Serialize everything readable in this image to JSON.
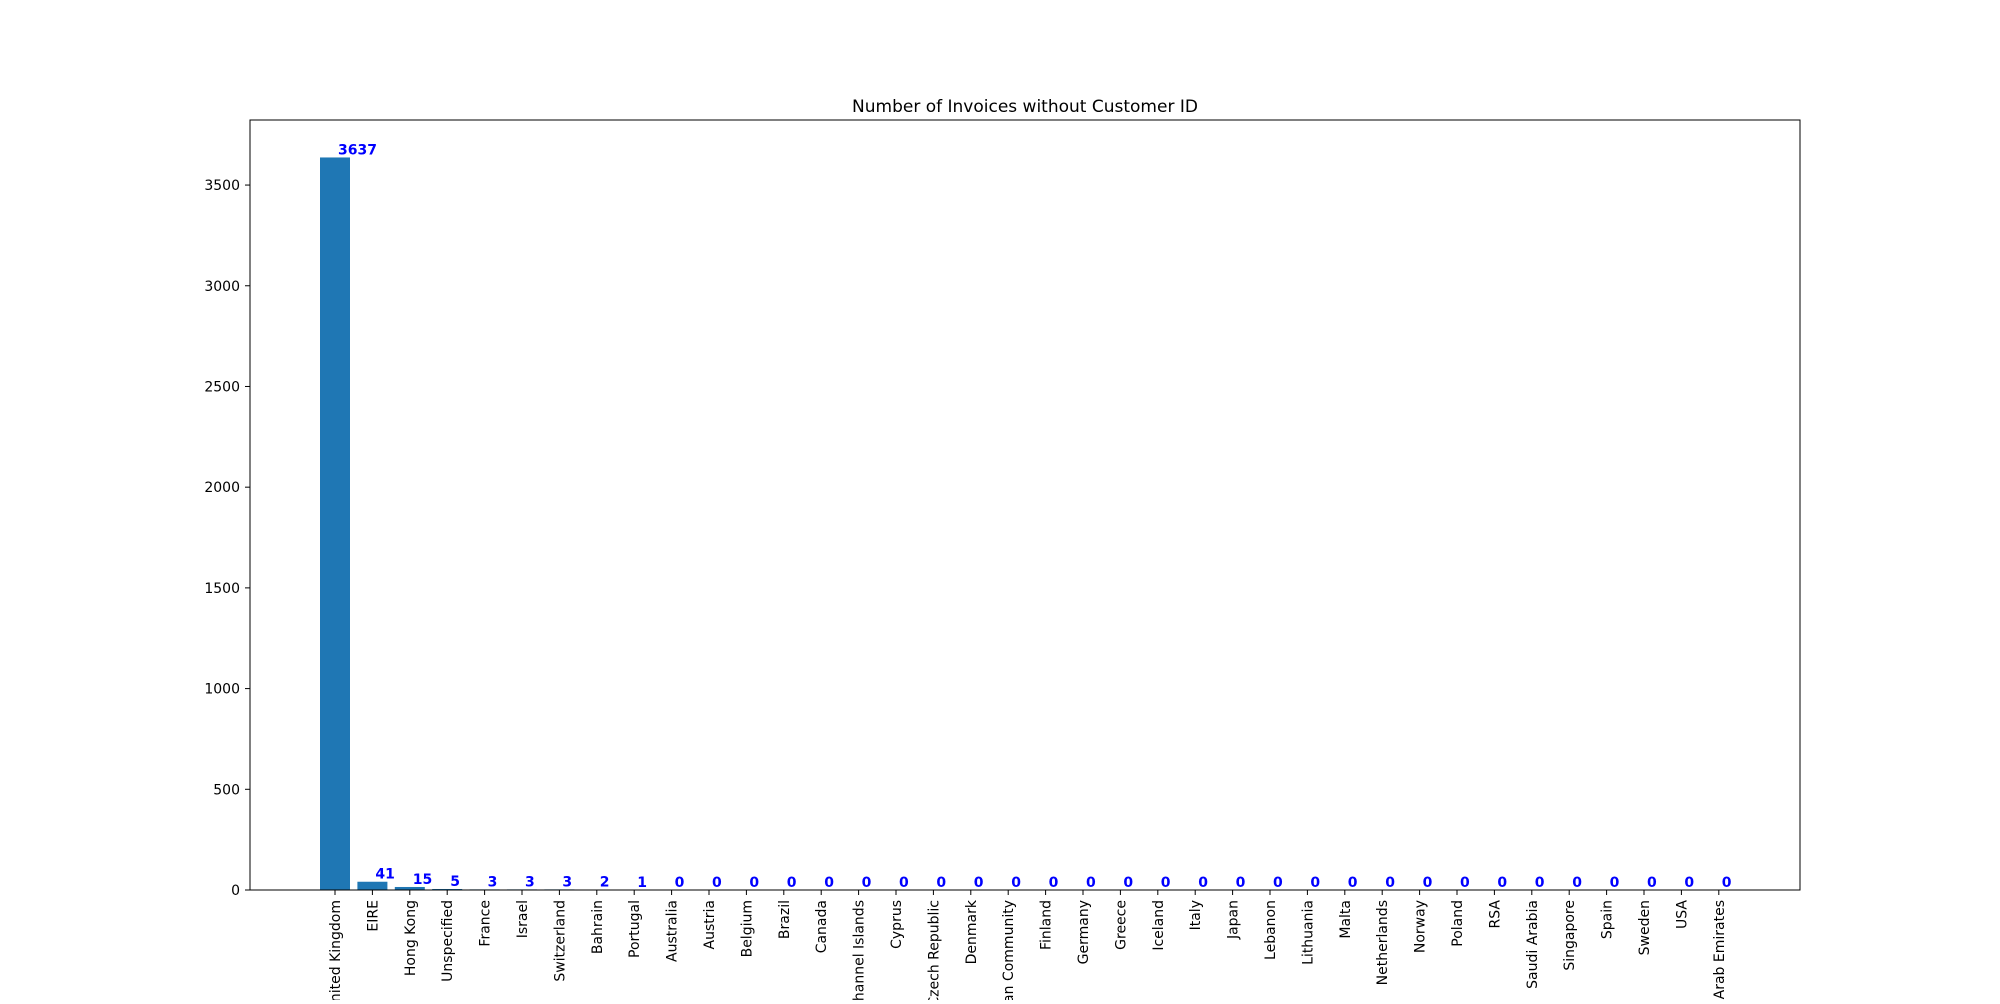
{
  "chart_data": {
    "type": "bar",
    "title": "Number of Invoices without Customer ID",
    "xlabel": "",
    "ylabel": "",
    "categories": [
      "United Kingdom",
      "EIRE",
      "Hong Kong",
      "Unspecified",
      "France",
      "Israel",
      "Switzerland",
      "Bahrain",
      "Portugal",
      "Australia",
      "Austria",
      "Belgium",
      "Brazil",
      "Canada",
      "Channel Islands",
      "Cyprus",
      "Czech Republic",
      "Denmark",
      "European Community",
      "Finland",
      "Germany",
      "Greece",
      "Iceland",
      "Italy",
      "Japan",
      "Lebanon",
      "Lithuania",
      "Malta",
      "Netherlands",
      "Norway",
      "Poland",
      "RSA",
      "Saudi Arabia",
      "Singapore",
      "Spain",
      "Sweden",
      "USA",
      "United Arab Emirates"
    ],
    "values": [
      3637,
      41,
      15,
      5,
      3,
      3,
      3,
      2,
      1,
      0,
      0,
      0,
      0,
      0,
      0,
      0,
      0,
      0,
      0,
      0,
      0,
      0,
      0,
      0,
      0,
      0,
      0,
      0,
      0,
      0,
      0,
      0,
      0,
      0,
      0,
      0,
      0,
      0
    ],
    "ylim": [
      0,
      3823
    ],
    "yticks": [
      0,
      500,
      1000,
      1500,
      2000,
      2500,
      3000,
      3500
    ],
    "bar_color": "#1f77b4",
    "label_color": "#0000ff",
    "grid": false,
    "legend": "none"
  }
}
